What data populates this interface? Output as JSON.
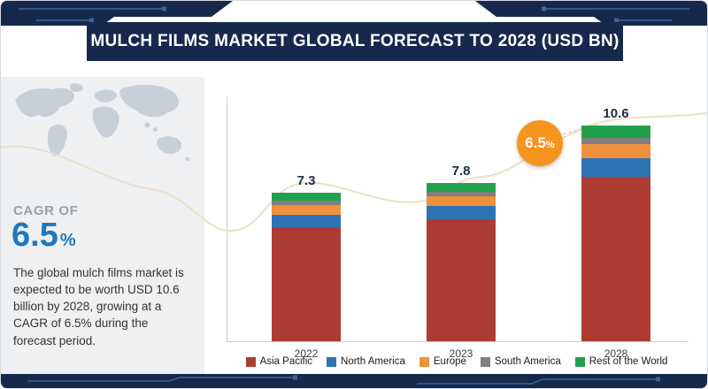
{
  "header": {
    "title": "MULCH FILMS MARKET GLOBAL FORECAST TO 2028 (USD BN)"
  },
  "sidebar": {
    "cagr_label": "CAGR OF",
    "cagr_value": "6.5",
    "cagr_unit": "%",
    "description": "The global mulch films market is expected to be worth USD 10.6 billion by 2028, growing at a CAGR of 6.5% during the forecast period."
  },
  "badge": {
    "value": "6.5",
    "unit": "%"
  },
  "colors": {
    "navy": "#16294D",
    "accent_blue": "#1F78BE",
    "badge_orange": "#F7941E",
    "sidebar_bg": "#eef0f2",
    "wave": "#EADFC8"
  },
  "chart_data": {
    "type": "bar",
    "stacked": true,
    "title": "MULCH FILMS MARKET GLOBAL FORECAST TO 2028 (USD BN)",
    "xlabel": "",
    "ylabel": "USD BN",
    "ylim": [
      0,
      11
    ],
    "grid": false,
    "legend_position": "bottom",
    "categories": [
      "2022",
      "2023",
      "2028"
    ],
    "totals": [
      7.3,
      7.8,
      10.6
    ],
    "series": [
      {
        "name": "Asia Pacific",
        "color": "#AE3C32",
        "values": [
          5.6,
          6.0,
          8.1
        ]
      },
      {
        "name": "North America",
        "color": "#2E74B5",
        "values": [
          0.6,
          0.65,
          0.9
        ]
      },
      {
        "name": "Europe",
        "color": "#F0913D",
        "values": [
          0.5,
          0.5,
          0.7
        ]
      },
      {
        "name": "South America",
        "color": "#7F7F7F",
        "values": [
          0.2,
          0.2,
          0.3
        ]
      },
      {
        "name": "Rest of the World",
        "color": "#22A14C",
        "values": [
          0.4,
          0.45,
          0.6
        ]
      }
    ],
    "annotations": [
      {
        "text": "6.5%",
        "style": "orange-circle",
        "between": [
          "2023",
          "2028"
        ]
      }
    ]
  }
}
